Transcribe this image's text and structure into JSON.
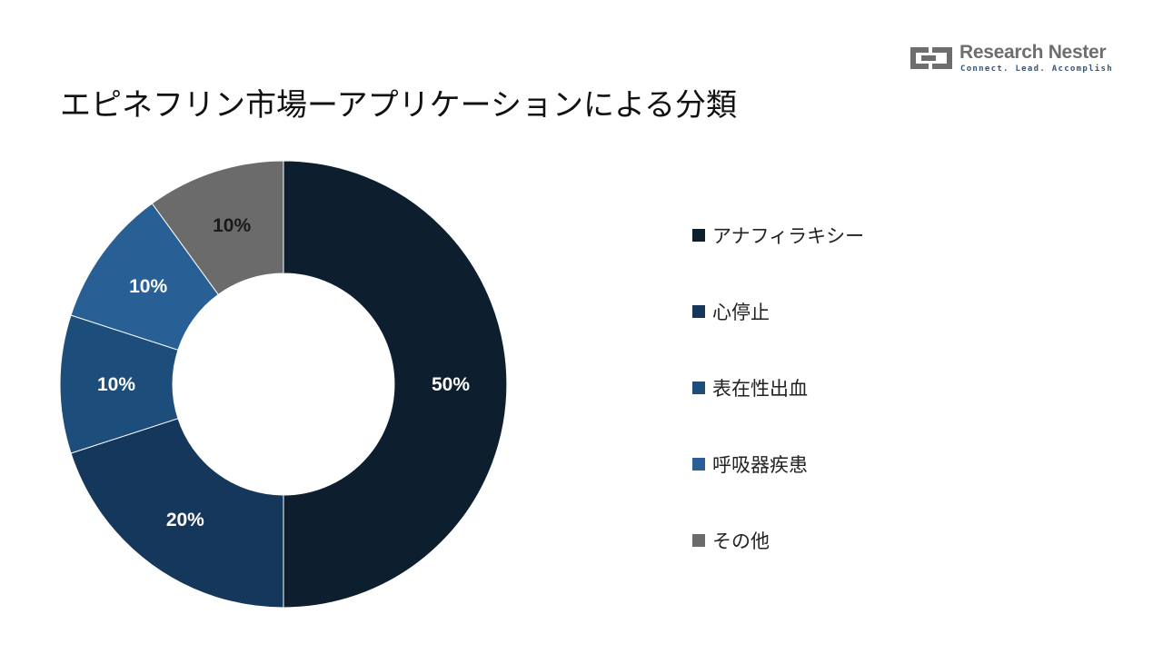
{
  "title": "エピネフリン市場ーアプリケーションによる分類",
  "logo": {
    "name": "Research Nester",
    "tagline": "Connect. Lead. Accomplish",
    "colors": {
      "mark": "#6e6e6e",
      "tagline": "#2a5784"
    }
  },
  "chart_data": {
    "type": "pie",
    "donut": true,
    "categories": [
      "アナフィラキシー",
      "心停止",
      "表在性出血",
      "呼吸器疾患",
      "その他"
    ],
    "values": [
      50,
      20,
      10,
      10,
      10
    ],
    "data_labels": [
      "50%",
      "20%",
      "10%",
      "10%",
      "10%"
    ],
    "colors": [
      "#0d1e2e",
      "#15375b",
      "#1d4e7b",
      "#285f95",
      "#6b6b6b"
    ],
    "legend_position": "right"
  }
}
